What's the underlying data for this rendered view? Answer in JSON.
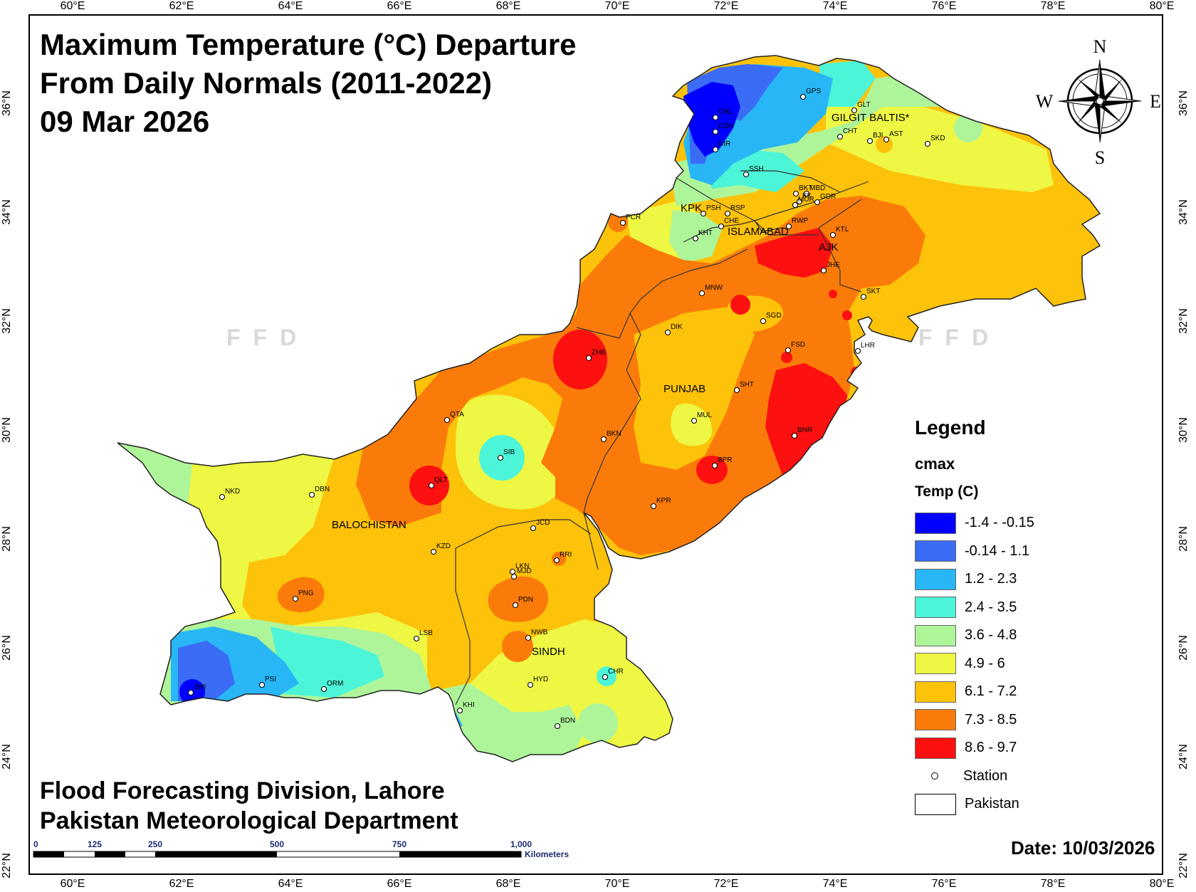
{
  "title": {
    "line1": "Maximum Temperature (°C) Departure",
    "line2": "From Daily Normals (2011-2022)",
    "line3": "09 Mar 2026"
  },
  "credits": {
    "line1": "Flood Forecasting Division, Lahore",
    "line2": "Pakistan Meteorological Department"
  },
  "date_label": "Date: 10/03/2026",
  "watermark": "FFD",
  "compass": {
    "n": "N",
    "s": "S",
    "e": "E",
    "w": "W"
  },
  "lon_labels": [
    "60°E",
    "62°E",
    "64°E",
    "66°E",
    "68°E",
    "70°E",
    "72°E",
    "74°E",
    "76°E",
    "78°E",
    "80°E"
  ],
  "lat_labels": [
    "36°N",
    "34°N",
    "32°N",
    "30°N",
    "28°N",
    "26°N",
    "24°N",
    "22°N"
  ],
  "scalebar": {
    "ticks": [
      "0",
      "125",
      "250",
      "500",
      "750",
      "1,000"
    ],
    "unit": "Kilometers"
  },
  "legend": {
    "title": "Legend",
    "field": "cmax",
    "subtitle": "Temp (C)",
    "classes": [
      {
        "label": "-1.4 - -0.15",
        "color": "#0000ff"
      },
      {
        "label": "-0.14 - 1.1",
        "color": "#3a6cf5"
      },
      {
        "label": "1.2 - 2.3",
        "color": "#29b6f6"
      },
      {
        "label": "2.4 - 3.5",
        "color": "#4cf5d8"
      },
      {
        "label": "3.6 - 4.8",
        "color": "#aef59a"
      },
      {
        "label": "4.9 - 6",
        "color": "#eef743"
      },
      {
        "label": "6.1 - 7.2",
        "color": "#fdc20a"
      },
      {
        "label": "7.3 - 8.5",
        "color": "#fb7b0a"
      },
      {
        "label": "8.6 - 9.7",
        "color": "#fc1010"
      }
    ],
    "station_label": "Station",
    "boundary_label": "Pakistan"
  },
  "regions": [
    "GILGIT BALTIS*",
    "KPK",
    "ISLAMABAD",
    "AJK",
    "PUNJAB",
    "BALOCHISTAN",
    "SINDH"
  ],
  "stations": [
    "CHL",
    "DSH",
    "DIR",
    "GPS",
    "GLT",
    "CHT",
    "BJI",
    "AST",
    "SKD",
    "SSH",
    "BKT",
    "MBD",
    "GDR",
    "KK",
    "MUR",
    "PSH",
    "RSP",
    "CHE",
    "PCR",
    "KHT",
    "RWP",
    "KTL",
    "JHE",
    "MNW",
    "SKT",
    "SGD",
    "DIK",
    "FSD",
    "LHR",
    "ZHB",
    "SHT",
    "PUNJAB",
    "MUL",
    "QTA",
    "BKN",
    "SIB",
    "BNR",
    "BPR",
    "NKD",
    "DBN",
    "QLT",
    "KPR",
    "JCD",
    "KZD",
    "RRI",
    "LKN",
    "MJD",
    "PNG",
    "PDN",
    "LSB",
    "NWB",
    "CHR",
    "HYD",
    "PSI",
    "ORM",
    "JWI",
    "KHI",
    "BDN"
  ]
}
